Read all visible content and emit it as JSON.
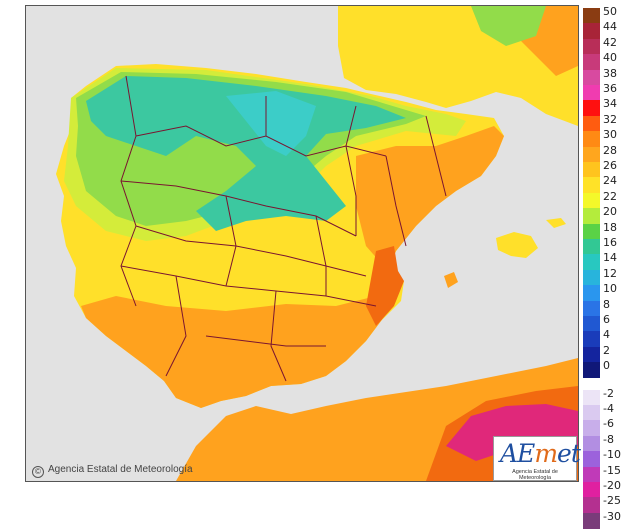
{
  "credit": "Agencia Estatal de Meteorología",
  "logo": {
    "text": "AEmet",
    "subtitle": "Agencia Estatal de Meteorología"
  },
  "colors": {
    "sea": "#e2e2e2",
    "border_lines": "#7a1530",
    "orange": "#ffa21e",
    "yellow_orange": "#ffc21e",
    "yellow": "#ffe02a",
    "lime": "#d4ec3a",
    "green": "#92dc4a",
    "teal": "#3cc8a0",
    "cyan": "#3ccdc8",
    "red_orange": "#f26a10",
    "magenta": "#e0287a"
  },
  "legend": {
    "positive": [
      {
        "label": "50",
        "color": "#8a3c12"
      },
      {
        "label": "44",
        "color": "#a82438"
      },
      {
        "label": "42",
        "color": "#b82e58"
      },
      {
        "label": "40",
        "color": "#c83a7a"
      },
      {
        "label": "38",
        "color": "#d84aa0"
      },
      {
        "label": "36",
        "color": "#f03cb0"
      },
      {
        "label": "34",
        "color": "#ff1010"
      },
      {
        "label": "32",
        "color": "#ff5c10"
      },
      {
        "label": "30",
        "color": "#ff8a14"
      },
      {
        "label": "28",
        "color": "#ffa61e"
      },
      {
        "label": "26",
        "color": "#ffc41e"
      },
      {
        "label": "24",
        "color": "#ffe228"
      },
      {
        "label": "22",
        "color": "#f4f82a"
      },
      {
        "label": "20",
        "color": "#b4ec3c"
      },
      {
        "label": "18",
        "color": "#5ad246"
      },
      {
        "label": "16",
        "color": "#32c894"
      },
      {
        "label": "14",
        "color": "#28c8c0"
      },
      {
        "label": "12",
        "color": "#28b4dc"
      },
      {
        "label": "10",
        "color": "#2a96ee"
      },
      {
        "label": "8",
        "color": "#2a74e6"
      },
      {
        "label": "6",
        "color": "#2058d2"
      },
      {
        "label": "4",
        "color": "#1a3cba"
      },
      {
        "label": "2",
        "color": "#14249e"
      },
      {
        "label": "0",
        "color": "#101878"
      }
    ],
    "negative": [
      {
        "label": "-2",
        "color": "#ece4f6"
      },
      {
        "label": "-4",
        "color": "#dacaf0"
      },
      {
        "label": "-6",
        "color": "#c8aeea"
      },
      {
        "label": "-8",
        "color": "#b28ee2"
      },
      {
        "label": "-10",
        "color": "#9c62dc"
      },
      {
        "label": "-15",
        "color": "#c03ab8"
      },
      {
        "label": "-20",
        "color": "#e020a0"
      },
      {
        "label": "-25",
        "color": "#b43090"
      },
      {
        "label": "-30",
        "color": "#7a3c7a"
      }
    ]
  }
}
